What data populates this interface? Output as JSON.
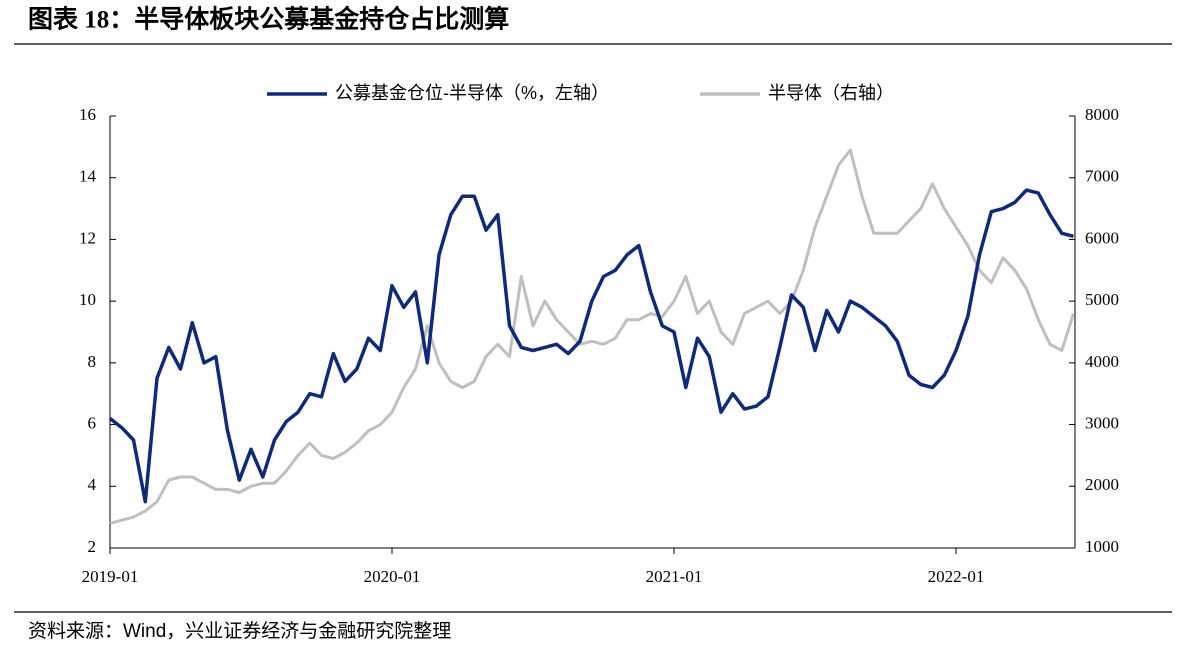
{
  "chart_data": {
    "type": "line",
    "title": "图表 18：半导体板块公募基金持仓占比测算",
    "source": "资料来源：Wind，兴业证券经济与金融研究院整理",
    "legend": "top",
    "categories": [
      "2019-01",
      null,
      null,
      null,
      null,
      null,
      null,
      null,
      null,
      null,
      null,
      null,
      null,
      null,
      null,
      null,
      null,
      null,
      null,
      null,
      null,
      null,
      null,
      null,
      "2020-01",
      null,
      null,
      null,
      null,
      null,
      null,
      null,
      null,
      null,
      null,
      null,
      null,
      null,
      null,
      null,
      null,
      null,
      null,
      null,
      null,
      null,
      null,
      null,
      "2021-01",
      null,
      null,
      null,
      null,
      null,
      null,
      null,
      null,
      null,
      null,
      null,
      null,
      null,
      null,
      null,
      null,
      null,
      null,
      null,
      null,
      null,
      null,
      null,
      "2022-01",
      null,
      null,
      null,
      null,
      null,
      null,
      null,
      null,
      null,
      null
    ],
    "ylim": [
      2,
      16
    ],
    "yticks": [
      2,
      4,
      6,
      8,
      10,
      12,
      14,
      16
    ],
    "y2lim": [
      1000,
      8000
    ],
    "y2ticks": [
      1000,
      2000,
      3000,
      4000,
      5000,
      6000,
      7000,
      8000
    ],
    "series": [
      {
        "name": "公募基金仓位-半导体（%，左轴）",
        "color": "#0e2a7a",
        "values": [
          6.2,
          5.9,
          5.5,
          3.5,
          7.5,
          8.5,
          7.8,
          9.3,
          8.0,
          8.2,
          5.8,
          4.2,
          5.2,
          4.3,
          5.5,
          6.1,
          6.4,
          7.0,
          6.9,
          8.3,
          7.4,
          7.8,
          8.8,
          8.4,
          10.5,
          9.8,
          10.3,
          8.0,
          11.5,
          12.8,
          13.4,
          13.4,
          12.3,
          12.8,
          9.2,
          8.5,
          8.4,
          8.5,
          8.6,
          8.3,
          8.7,
          10.0,
          10.8,
          11.0,
          11.5,
          11.8,
          10.3,
          9.2,
          9.0,
          7.2,
          8.8,
          8.2,
          6.4,
          7.0,
          6.5,
          6.6,
          6.9,
          8.5,
          10.2,
          9.8,
          8.4,
          9.7,
          9.0,
          10.0,
          9.8,
          9.5,
          9.2,
          8.7,
          7.6,
          7.3,
          7.2,
          7.6,
          8.4,
          9.5,
          11.5,
          12.9,
          13.0,
          13.2,
          13.6,
          13.5,
          12.8,
          12.2,
          12.1
        ]
      },
      {
        "name": "半导体（右轴）",
        "color": "#bfbfbf",
        "axis": "y2",
        "values": [
          1400,
          1450,
          1500,
          1600,
          1750,
          2100,
          2150,
          2150,
          2050,
          1950,
          1950,
          1900,
          2000,
          2050,
          2050,
          2250,
          2500,
          2700,
          2500,
          2450,
          2550,
          2700,
          2900,
          3000,
          3200,
          3600,
          3900,
          4600,
          4000,
          3700,
          3600,
          3700,
          4100,
          4300,
          4100,
          5400,
          4600,
          5000,
          4700,
          4500,
          4300,
          4350,
          4300,
          4400,
          4700,
          4700,
          4800,
          4750,
          5000,
          5400,
          4800,
          5000,
          4500,
          4300,
          4800,
          4900,
          5000,
          4800,
          5000,
          5500,
          6200,
          6700,
          7200,
          7450,
          6700,
          6100,
          6100,
          6100,
          6300,
          6500,
          6900,
          6500,
          6200,
          5900,
          5500,
          5300,
          5700,
          5500,
          5200,
          4700,
          4300,
          4200,
          4800
        ]
      }
    ]
  }
}
